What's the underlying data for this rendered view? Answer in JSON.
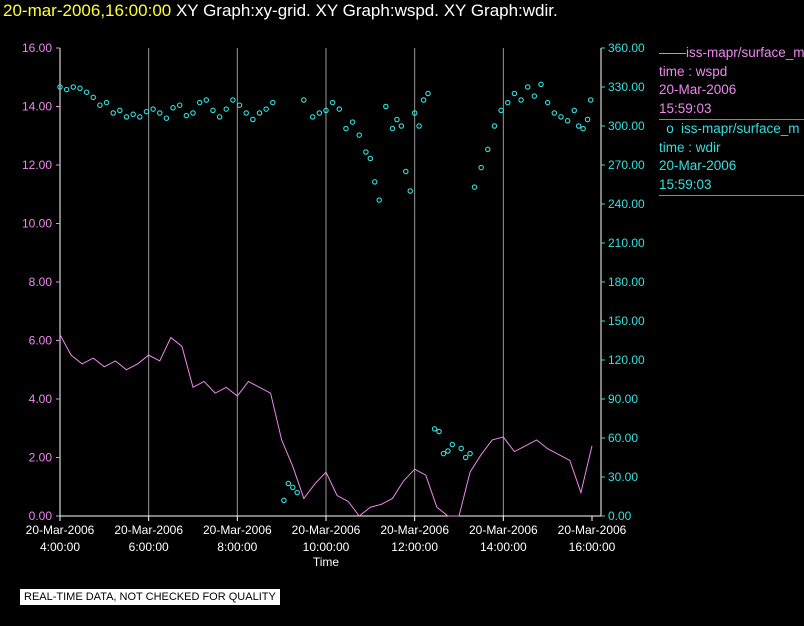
{
  "header": {
    "timestamp": "20-mar-2006,16:00:00",
    "graphs": [
      "XY Graph:xy-grid.",
      "XY Graph:wspd.",
      "XY Graph:wdir."
    ]
  },
  "legend": {
    "entries": [
      {
        "symbol": "——",
        "name": "iss-mapr/surface_m",
        "line1": "time : wspd",
        "line2": "20-Mar-2006",
        "line3": "15:59:03",
        "color": "#ee88ee",
        "style": "line"
      },
      {
        "symbol": "o",
        "name": "iss-mapr/surface_m",
        "line1": "time : wdir",
        "line2": "20-Mar-2006",
        "line3": "15:59:03",
        "color": "#33e0e0",
        "style": "circle"
      }
    ]
  },
  "footer": {
    "text": "REAL-TIME DATA, NOT CHECKED FOR QUALITY"
  },
  "chart_data": {
    "type": "line",
    "title": "",
    "xlabel": "Time",
    "x_ticks": [
      {
        "date": "20-Mar-2006",
        "time": "4:00:00"
      },
      {
        "date": "20-Mar-2006",
        "time": "6:00:00"
      },
      {
        "date": "20-Mar-2006",
        "time": "8:00:00"
      },
      {
        "date": "20-Mar-2006",
        "time": "10:00:00"
      },
      {
        "date": "20-Mar-2006",
        "time": "12:00:00"
      },
      {
        "date": "20-Mar-2006",
        "time": "14:00:00"
      },
      {
        "date": "20-Mar-2006",
        "time": "16:00:00"
      }
    ],
    "xlim_hours": [
      4,
      16
    ],
    "grid": "vertical",
    "y_left": {
      "ylim": [
        0,
        16
      ],
      "ticks": [
        "0.00",
        "2.00",
        "4.00",
        "6.00",
        "8.00",
        "10.00",
        "12.00",
        "14.00",
        "16.00"
      ],
      "color": "#ee88ee"
    },
    "y_right": {
      "ylim": [
        0,
        360
      ],
      "ticks": [
        "0.00",
        "30.00",
        "60.00",
        "90.00",
        "120.00",
        "150.00",
        "180.00",
        "210.00",
        "240.00",
        "270.00",
        "300.00",
        "330.00",
        "360.00"
      ],
      "color": "#33e0e0"
    },
    "series": [
      {
        "axis": "left",
        "style": "line",
        "color": "#ee88ee",
        "x": [
          4.0,
          4.25,
          4.5,
          4.75,
          5.0,
          5.25,
          5.5,
          5.75,
          6.0,
          6.25,
          6.5,
          6.75,
          7.0,
          7.25,
          7.5,
          7.75,
          8.0,
          8.25,
          8.5,
          8.75,
          9.0,
          9.25,
          9.5,
          9.75,
          10.0,
          10.25,
          10.5,
          10.75,
          11.0,
          11.25,
          11.5,
          11.75,
          12.0,
          12.25,
          12.5,
          12.75,
          13.0,
          13.25,
          13.5,
          13.75,
          14.0,
          14.25,
          14.5,
          14.75,
          15.0,
          15.25,
          15.5,
          15.75,
          16.0
        ],
        "values": [
          6.2,
          5.5,
          5.2,
          5.4,
          5.1,
          5.3,
          5.0,
          5.2,
          5.5,
          5.3,
          6.1,
          5.8,
          4.4,
          4.6,
          4.2,
          4.4,
          4.1,
          4.6,
          4.4,
          4.2,
          2.6,
          1.7,
          0.6,
          1.1,
          1.5,
          0.7,
          0.5,
          0.0,
          0.3,
          0.4,
          0.6,
          1.2,
          1.6,
          1.4,
          0.3,
          0.0,
          0.0,
          1.5,
          2.1,
          2.6,
          2.7,
          2.2,
          2.4,
          2.6,
          2.3,
          2.1,
          1.9,
          0.8,
          2.4
        ]
      },
      {
        "axis": "right",
        "style": "circle",
        "color": "#33e0e0",
        "x": [
          4.0,
          4.15,
          4.3,
          4.45,
          4.6,
          4.75,
          4.9,
          5.05,
          5.2,
          5.35,
          5.5,
          5.65,
          5.8,
          5.95,
          6.1,
          6.25,
          6.4,
          6.55,
          6.7,
          6.85,
          7.0,
          7.15,
          7.3,
          7.45,
          7.6,
          7.75,
          7.9,
          8.05,
          8.2,
          8.35,
          8.5,
          8.65,
          8.8,
          9.05,
          9.15,
          9.25,
          9.35,
          9.5,
          9.7,
          9.85,
          10.0,
          10.15,
          10.3,
          10.45,
          10.6,
          10.75,
          10.9,
          11.0,
          11.1,
          11.2,
          11.35,
          11.5,
          11.6,
          11.7,
          11.8,
          11.9,
          12.0,
          12.1,
          12.2,
          12.3,
          12.45,
          12.55,
          12.65,
          12.75,
          12.85,
          13.05,
          13.15,
          13.25,
          13.35,
          13.5,
          13.65,
          13.8,
          13.95,
          14.1,
          14.25,
          14.4,
          14.55,
          14.7,
          14.85,
          15.0,
          15.15,
          15.3,
          15.45,
          15.6,
          15.7,
          15.8,
          15.9,
          15.97
        ],
        "values": [
          330,
          328,
          330,
          329,
          326,
          322,
          316,
          318,
          310,
          312,
          307,
          309,
          307,
          311,
          313,
          310,
          306,
          314,
          316,
          308,
          310,
          318,
          320,
          312,
          307,
          313,
          320,
          316,
          310,
          305,
          310,
          313,
          318,
          12,
          25,
          22,
          18,
          320,
          307,
          310,
          312,
          318,
          313,
          298,
          303,
          293,
          280,
          275,
          257,
          243,
          315,
          298,
          305,
          300,
          265,
          250,
          310,
          300,
          320,
          325,
          67,
          65,
          48,
          50,
          55,
          52,
          45,
          48,
          253,
          268,
          282,
          300,
          312,
          318,
          325,
          320,
          330,
          323,
          332,
          318,
          310,
          307,
          304,
          312,
          300,
          298,
          305,
          320
        ]
      }
    ]
  }
}
